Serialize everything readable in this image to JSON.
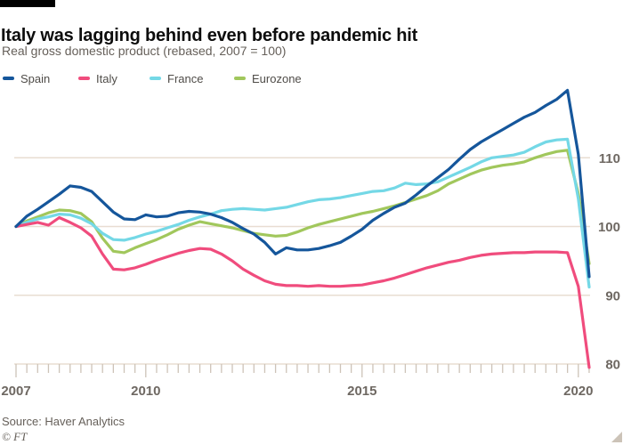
{
  "header": {
    "title": "Italy was lagging behind even before pandemic hit",
    "subtitle": "Real gross domestic product (rebased, 2007 = 100)"
  },
  "footer": {
    "source": "Source: Haver Analytics",
    "credit": "© FT"
  },
  "colors": {
    "background": "#ffffff",
    "top_bar": "#000000",
    "title_text": "#0d0d0d",
    "subtitle_text": "#66605a",
    "grid": "#e8ddd2",
    "tick": "#cdc3b8",
    "axis_label": "#6e6862",
    "spain": "#15569b",
    "italy": "#f04c7d",
    "france": "#74d8e6",
    "eurozone": "#a1c75c",
    "corner_triangle": "#ccc3b8"
  },
  "chart_data": {
    "type": "line",
    "title": "Italy was lagging behind even before pandemic hit",
    "subtitle": "Real gross domestic product (rebased, 2007 = 100)",
    "xlabel": "",
    "ylabel": "",
    "grid": true,
    "legend_position": "top",
    "x_start": 2007,
    "x_step": 0.25,
    "x_end": 2020.25,
    "ylim": [
      79,
      121
    ],
    "xlim": [
      2007,
      2020.3
    ],
    "y_ticks": [
      {
        "value": 110,
        "label": "110"
      },
      {
        "value": 100,
        "label": "100"
      },
      {
        "value": 90,
        "label": "90"
      },
      {
        "value": 80,
        "label": "80"
      }
    ],
    "x_ticks": [
      {
        "year": 2007,
        "label": "2007"
      },
      {
        "year": 2010,
        "label": "2010"
      },
      {
        "year": 2015,
        "label": "2015"
      },
      {
        "year": 2020,
        "label": "2020"
      }
    ],
    "series": [
      {
        "name": "Spain",
        "color": "#15569b",
        "values": [
          100,
          101.5,
          102.5,
          103.6,
          104.7,
          105.9,
          105.7,
          105.1,
          103.6,
          102.1,
          101.1,
          101.0,
          101.7,
          101.4,
          101.5,
          102.0,
          102.2,
          102.1,
          101.8,
          101.3,
          100.6,
          99.7,
          98.9,
          97.7,
          96.0,
          96.9,
          96.6,
          96.6,
          96.8,
          97.2,
          97.7,
          98.6,
          99.6,
          100.9,
          101.9,
          102.8,
          103.4,
          104.6,
          105.9,
          107.1,
          108.3,
          109.8,
          111.2,
          112.3,
          113.2,
          114.1,
          115.0,
          115.9,
          116.6,
          117.6,
          118.5,
          119.8,
          110.5,
          92.7
        ]
      },
      {
        "name": "Italy",
        "color": "#f04c7d",
        "values": [
          100,
          100.3,
          100.6,
          100.2,
          101.3,
          100.6,
          99.8,
          98.6,
          96.0,
          93.8,
          93.7,
          94.0,
          94.5,
          95.1,
          95.6,
          96.1,
          96.5,
          96.8,
          96.7,
          96.0,
          95.0,
          93.8,
          92.9,
          92.1,
          91.6,
          91.4,
          91.4,
          91.3,
          91.4,
          91.3,
          91.3,
          91.4,
          91.5,
          91.8,
          92.1,
          92.5,
          93.0,
          93.5,
          94.0,
          94.4,
          94.8,
          95.1,
          95.5,
          95.8,
          96.0,
          96.1,
          96.2,
          96.2,
          96.3,
          96.3,
          96.3,
          96.2,
          91.3,
          79.5
        ]
      },
      {
        "name": "France",
        "color": "#74d8e6",
        "values": [
          100,
          100.6,
          101.1,
          101.4,
          101.8,
          101.7,
          101.2,
          100.4,
          99.0,
          98.1,
          98.0,
          98.4,
          98.9,
          99.3,
          99.8,
          100.3,
          100.9,
          101.4,
          101.8,
          102.3,
          102.5,
          102.6,
          102.5,
          102.4,
          102.6,
          102.8,
          103.2,
          103.6,
          103.9,
          104.0,
          104.2,
          104.5,
          104.8,
          105.1,
          105.2,
          105.6,
          106.3,
          106.1,
          106.2,
          106.5,
          107.2,
          107.9,
          108.6,
          109.4,
          110.0,
          110.2,
          110.4,
          110.8,
          111.6,
          112.3,
          112.6,
          112.7,
          104.0,
          91.2
        ]
      },
      {
        "name": "Eurozone",
        "color": "#a1c75c",
        "values": [
          100,
          100.8,
          101.4,
          102.0,
          102.4,
          102.3,
          101.9,
          100.7,
          98.3,
          96.4,
          96.2,
          96.9,
          97.5,
          98.1,
          98.8,
          99.6,
          100.2,
          100.7,
          100.4,
          100.1,
          99.8,
          99.4,
          99.0,
          98.8,
          98.6,
          98.7,
          99.2,
          99.8,
          100.3,
          100.7,
          101.1,
          101.5,
          101.9,
          102.2,
          102.6,
          103.0,
          103.5,
          104.0,
          104.5,
          105.2,
          106.2,
          106.9,
          107.6,
          108.2,
          108.6,
          108.9,
          109.1,
          109.4,
          110.0,
          110.5,
          110.9,
          111.1,
          104.8,
          94.6
        ]
      }
    ]
  }
}
